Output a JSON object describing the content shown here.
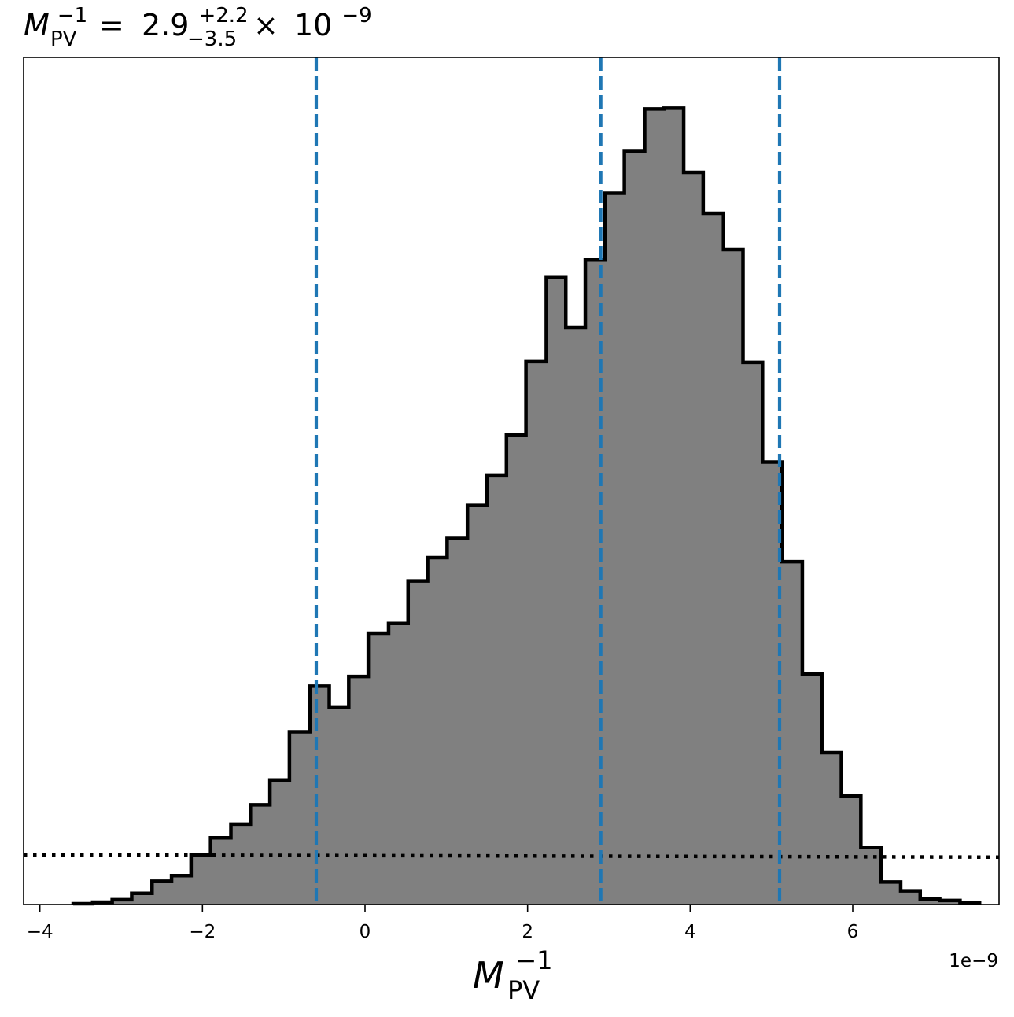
{
  "chart_data": {
    "type": "histogram",
    "title": {
      "symbol": "M",
      "subscript": "PV",
      "superscript": "−1",
      "equals": "=",
      "median": "2.9",
      "upper_err": "+2.2",
      "lower_err": "−3.5",
      "times": "×",
      "base": "10",
      "exponent": "−9"
    },
    "xlabel": {
      "symbol": "M",
      "subscript": "PV",
      "superscript": "−1"
    },
    "x_offset_label": "1e−9",
    "x_scale": 1e-09,
    "xlim": [
      -4.2,
      7.8
    ],
    "ylim": [
      0,
      1.055
    ],
    "x_ticks": [
      -4,
      -2,
      0,
      2,
      4,
      6
    ],
    "x_tick_labels": [
      "−4",
      "−2",
      "0",
      "2",
      "4",
      "6"
    ],
    "bin_edges": [
      -3.59,
      -3.35,
      -3.11,
      -2.87,
      -2.62,
      -2.38,
      -2.14,
      -1.9,
      -1.65,
      -1.41,
      -1.17,
      -0.93,
      -0.68,
      -0.44,
      -0.2,
      0.04,
      0.29,
      0.53,
      0.77,
      1.01,
      1.26,
      1.5,
      1.74,
      1.98,
      2.23,
      2.47,
      2.71,
      2.95,
      3.19,
      3.44,
      3.68,
      3.92,
      4.16,
      4.41,
      4.65,
      4.89,
      5.13,
      5.38,
      5.62,
      5.86,
      6.1,
      6.35,
      6.59,
      6.83,
      7.07,
      7.32,
      7.56
    ],
    "bin_heights": [
      0.001,
      0.003,
      0.006,
      0.014,
      0.029,
      0.036,
      0.062,
      0.083,
      0.1,
      0.124,
      0.155,
      0.215,
      0.272,
      0.246,
      0.284,
      0.338,
      0.35,
      0.403,
      0.432,
      0.456,
      0.497,
      0.534,
      0.585,
      0.676,
      0.781,
      0.719,
      0.803,
      0.886,
      0.938,
      0.991,
      0.992,
      0.912,
      0.861,
      0.816,
      0.675,
      0.551,
      0.427,
      0.287,
      0.189,
      0.135,
      0.071,
      0.028,
      0.017,
      0.007,
      0.005,
      0.002
    ],
    "fill_color": "#808080",
    "edge_color": "#000000",
    "quantile_lines": {
      "values": [
        -0.6,
        2.9,
        5.1
      ],
      "color": "#1f77b4",
      "style": "dashed"
    },
    "prior_line": {
      "y_start": 0.062,
      "y_end": 0.059,
      "color": "#000000",
      "style": "dotted"
    },
    "grid": false
  }
}
